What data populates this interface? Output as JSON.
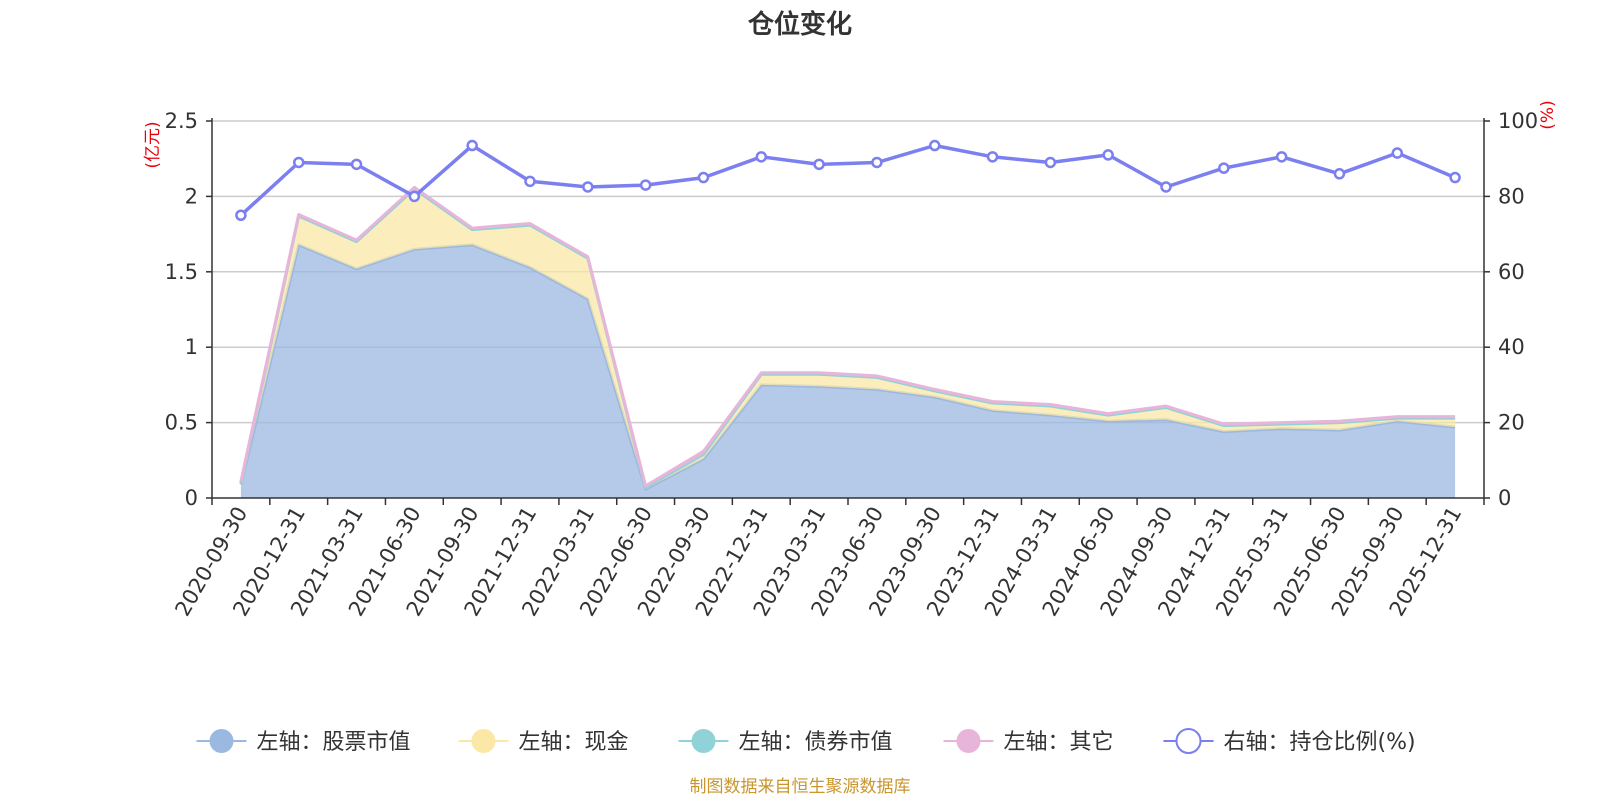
{
  "chart_data": {
    "type": "area",
    "title": "仓位变化",
    "categories": [
      "2020-09-30",
      "2020-12-31",
      "2021-03-31",
      "2021-06-30",
      "2021-09-30",
      "2021-12-31",
      "2022-03-31",
      "2022-06-30",
      "2022-09-30",
      "2022-12-31",
      "2023-03-31",
      "2023-06-30",
      "2023-09-30",
      "2023-12-31",
      "2024-03-31",
      "2024-06-30",
      "2024-09-30",
      "2024-12-31",
      "2025-03-31",
      "2025-06-30",
      "2025-09-30",
      "2025-12-31"
    ],
    "left_axis": {
      "unit": "(亿元)",
      "ylim": [
        0,
        2.5
      ],
      "ticks": [
        "0",
        "0.5",
        "1",
        "1.5",
        "2",
        "2.5"
      ]
    },
    "right_axis": {
      "unit": "(%)",
      "ylim": [
        0,
        100
      ],
      "ticks": [
        "0",
        "20",
        "40",
        "60",
        "80",
        "100"
      ]
    },
    "series": [
      {
        "name": "左轴：股票市值",
        "axis": "left",
        "color": "#9bb8e0",
        "values": [
          0.09,
          1.68,
          1.52,
          1.65,
          1.68,
          1.53,
          1.32,
          0.06,
          0.26,
          0.75,
          0.74,
          0.72,
          0.67,
          0.58,
          0.55,
          0.51,
          0.52,
          0.44,
          0.46,
          0.45,
          0.51,
          0.47
        ]
      },
      {
        "name": "左轴：现金",
        "axis": "left",
        "color": "#fbe8a6",
        "values": [
          0.01,
          0.19,
          0.18,
          0.4,
          0.1,
          0.28,
          0.27,
          0.01,
          0.03,
          0.07,
          0.08,
          0.08,
          0.04,
          0.05,
          0.06,
          0.04,
          0.08,
          0.04,
          0.03,
          0.05,
          0.02,
          0.06
        ]
      },
      {
        "name": "左轴：债券市值",
        "axis": "left",
        "color": "#8fd3d8",
        "values": [
          0,
          0,
          0,
          0,
          0,
          0,
          0,
          0,
          0,
          0,
          0,
          0,
          0,
          0,
          0,
          0,
          0,
          0,
          0,
          0,
          0,
          0
        ]
      },
      {
        "name": "左轴：其它",
        "axis": "left",
        "color": "#e8b5da",
        "values": [
          0.01,
          0.01,
          0.01,
          0.01,
          0.01,
          0.01,
          0.01,
          0.01,
          0.02,
          0.01,
          0.01,
          0.01,
          0.01,
          0.01,
          0.01,
          0.01,
          0.01,
          0.01,
          0.01,
          0.01,
          0.01,
          0.01
        ]
      },
      {
        "name": "右轴：持仓比例(%)",
        "axis": "right",
        "color": "#7b7ff0",
        "values": [
          75,
          89,
          88.5,
          80,
          93.5,
          84,
          82.5,
          83,
          85,
          90.5,
          88.5,
          89,
          93.5,
          90.5,
          89,
          91,
          82.5,
          87.5,
          90.5,
          86,
          91.5,
          85
        ]
      }
    ],
    "source_note": "制图数据来自恒生聚源数据库"
  }
}
